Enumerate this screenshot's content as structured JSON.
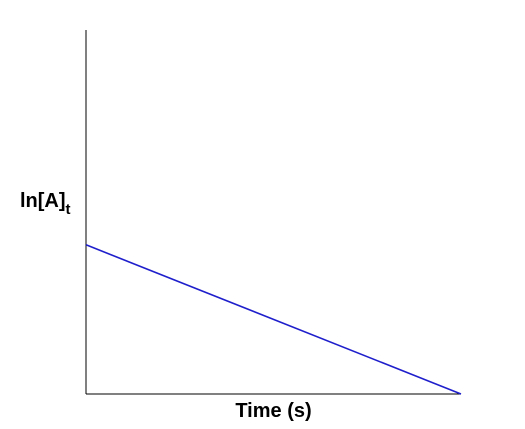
{
  "chart_data": {
    "type": "line",
    "title": "",
    "xlabel": "Time (s)",
    "ylabel": {
      "main": "ln[A]",
      "subscript": "t"
    },
    "grid": false,
    "legend": "none",
    "xlim": [
      0,
      1
    ],
    "ylim": [
      0,
      1
    ],
    "series": [
      {
        "x": [
          0,
          1
        ],
        "y": [
          0.41,
          0
        ],
        "color": "#1f1fcc"
      }
    ]
  }
}
